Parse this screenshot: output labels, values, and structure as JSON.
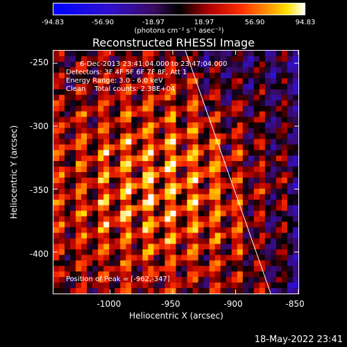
{
  "colorbar": {
    "ticks": [
      "-94.83",
      "-56.90",
      "-18.97",
      "18.97",
      "56.90",
      "94.83"
    ],
    "units": "(photons cm⁻² s⁻¹ asec⁻²)"
  },
  "title": "Reconstructed RHESSI Image",
  "info": {
    "line1": "6-Dec-2013 23:41:04.000 to 23:47:04.000",
    "line2": "Detectors: 3F 4F 5F 6F 7F 8F, Att 1",
    "line3": "Energy Range: 3.0 - 6.0 keV",
    "line4": "Clean    Total counts: 2.38E+04",
    "peak": "Position of Peak = [-962,-347]"
  },
  "footer": "18-May-2022 23:41",
  "chart_data": {
    "type": "heatmap",
    "title": "Reconstructed RHESSI Image",
    "xlabel": "Heliocentric X (arcsec)",
    "ylabel": "Heliocentric Y (arcsec)",
    "xlim": [
      -1045,
      -850
    ],
    "ylim": [
      -433,
      -240
    ],
    "x_ticks": [
      "-1000",
      "-950",
      "-900",
      "-850"
    ],
    "y_ticks": [
      "-250",
      "-300",
      "-350",
      "-400"
    ],
    "x_tick_values": [
      -1000,
      -950,
      -900,
      -850
    ],
    "y_tick_values": [
      -250,
      -300,
      -350,
      -400
    ],
    "colorbar_range": [
      -94.83,
      94.83
    ],
    "colormap": "blue-purple-black-red-orange-yellow-white",
    "peak_position": [
      -962,
      -347
    ],
    "limb_line": [
      [
        -940,
        -240
      ],
      [
        -872,
        -433
      ]
    ]
  }
}
